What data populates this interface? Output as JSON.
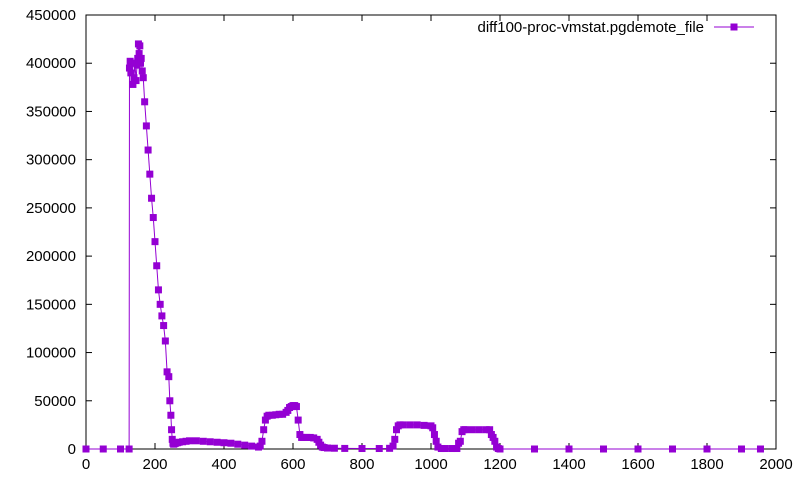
{
  "chart_data": {
    "type": "line",
    "title": "",
    "xlabel": "",
    "ylabel": "",
    "xlim": [
      0,
      2000
    ],
    "ylim": [
      0,
      450000
    ],
    "x_ticks": [
      0,
      200,
      400,
      600,
      800,
      1000,
      1200,
      1400,
      1600,
      1800,
      2000
    ],
    "y_ticks": [
      0,
      50000,
      100000,
      150000,
      200000,
      250000,
      300000,
      350000,
      400000,
      450000
    ],
    "grid": false,
    "legend_position": "top-right",
    "series": [
      {
        "name": "diff100-proc-vmstat.pgdemote_file",
        "color": "#9400d3",
        "marker": "square",
        "x": [
          0,
          50,
          100,
          125,
          126,
          128,
          130,
          133,
          136,
          139,
          142,
          145,
          148,
          150,
          152,
          154,
          156,
          158,
          160,
          163,
          166,
          170,
          175,
          180,
          185,
          190,
          195,
          200,
          205,
          210,
          215,
          220,
          225,
          230,
          235,
          240,
          243,
          246,
          248,
          250,
          252,
          254,
          256,
          258,
          260,
          265,
          270,
          280,
          290,
          300,
          320,
          340,
          360,
          380,
          400,
          420,
          440,
          460,
          480,
          500,
          505,
          510,
          515,
          520,
          525,
          530,
          540,
          550,
          560,
          570,
          580,
          585,
          590,
          595,
          600,
          605,
          610,
          615,
          620,
          625,
          630,
          640,
          650,
          660,
          670,
          675,
          680,
          685,
          690,
          700,
          720,
          750,
          800,
          850,
          880,
          890,
          895,
          900,
          905,
          910,
          920,
          940,
          960,
          980,
          1000,
          1005,
          1010,
          1015,
          1020,
          1030,
          1040,
          1060,
          1075,
          1080,
          1085,
          1090,
          1095,
          1100,
          1120,
          1140,
          1160,
          1170,
          1175,
          1180,
          1185,
          1190,
          1195,
          1200,
          1300,
          1400,
          1500,
          1600,
          1700,
          1800,
          1900,
          1955
        ],
        "y": [
          0,
          0,
          0,
          0,
          395000,
          402000,
          390000,
          400000,
          378000,
          385000,
          400000,
          382000,
          398000,
          405000,
          420000,
          410000,
          418000,
          400000,
          405000,
          392000,
          385000,
          360000,
          335000,
          310000,
          285000,
          260000,
          240000,
          215000,
          190000,
          165000,
          150000,
          138000,
          128000,
          112000,
          80000,
          75000,
          50000,
          35000,
          20000,
          10000,
          6000,
          5000,
          5500,
          6000,
          6000,
          6500,
          7000,
          7500,
          8000,
          8500,
          8500,
          8000,
          7500,
          7000,
          6500,
          6000,
          5000,
          4000,
          3000,
          2000,
          3000,
          8000,
          20000,
          30000,
          34000,
          35000,
          35000,
          35500,
          36000,
          36000,
          38000,
          40000,
          43000,
          44000,
          45000,
          45000,
          44000,
          30000,
          15000,
          12000,
          12000,
          12000,
          12000,
          11500,
          10000,
          7000,
          4000,
          2000,
          1500,
          1000,
          800,
          600,
          500,
          500,
          700,
          3000,
          10000,
          20000,
          24000,
          25000,
          25000,
          25000,
          25000,
          24500,
          24000,
          22000,
          15000,
          8000,
          2000,
          500,
          500,
          500,
          500,
          6000,
          8000,
          18000,
          20000,
          20000,
          20000,
          20000,
          20000,
          20000,
          15000,
          12000,
          8000,
          2000,
          500,
          0,
          0,
          0,
          0,
          0,
          0,
          0,
          0,
          0
        ]
      }
    ]
  }
}
